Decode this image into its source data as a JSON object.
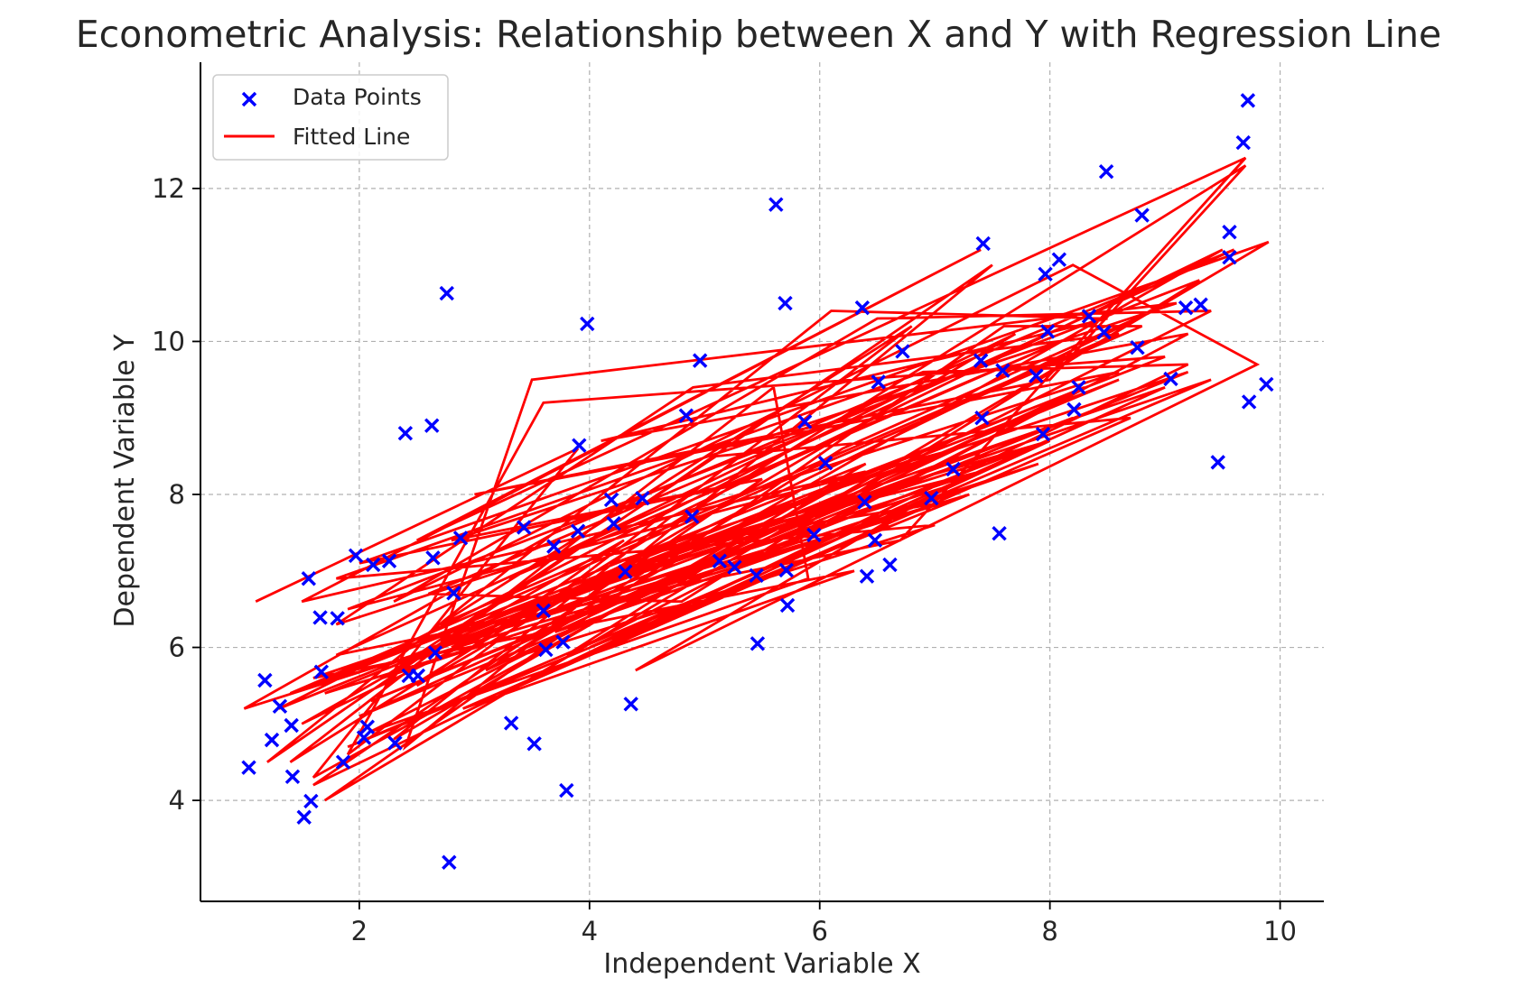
{
  "chart_data": {
    "type": "scatter",
    "title": "Econometric Analysis: Relationship between X and Y with Regression Line",
    "xlabel": "Independent Variable X",
    "ylabel": "Dependent Variable Y",
    "xlim": [
      0.62,
      10.38
    ],
    "ylim": [
      2.68,
      13.65
    ],
    "xticks": [
      "2",
      "4",
      "6",
      "8",
      "10"
    ],
    "yticks": [
      "4",
      "6",
      "8",
      "10",
      "12"
    ],
    "grid": true,
    "legend_position": "top-left",
    "series": [
      {
        "name": "Data Points",
        "kind": "scatter",
        "marker": "x",
        "color": "#0000ff",
        "points": [
          [
            1.04,
            4.43
          ],
          [
            1.18,
            5.57
          ],
          [
            1.24,
            4.79
          ],
          [
            1.31,
            5.23
          ],
          [
            1.41,
            4.98
          ],
          [
            1.42,
            4.31
          ],
          [
            1.52,
            3.78
          ],
          [
            1.56,
            6.9
          ],
          [
            1.58,
            3.99
          ],
          [
            1.66,
            6.39
          ],
          [
            1.67,
            5.68
          ],
          [
            1.81,
            6.38
          ],
          [
            1.86,
            4.5
          ],
          [
            1.97,
            7.2
          ],
          [
            2.04,
            4.82
          ],
          [
            2.07,
            4.96
          ],
          [
            2.12,
            7.08
          ],
          [
            2.26,
            7.13
          ],
          [
            2.31,
            4.75
          ],
          [
            2.4,
            8.8
          ],
          [
            2.43,
            5.63
          ],
          [
            2.51,
            5.63
          ],
          [
            2.63,
            8.9
          ],
          [
            2.64,
            7.17
          ],
          [
            2.66,
            5.93
          ],
          [
            2.76,
            10.63
          ],
          [
            2.78,
            3.19
          ],
          [
            2.82,
            6.71
          ],
          [
            2.88,
            7.43
          ],
          [
            3.32,
            5.01
          ],
          [
            3.43,
            7.57
          ],
          [
            3.52,
            4.74
          ],
          [
            3.6,
            6.48
          ],
          [
            3.62,
            5.97
          ],
          [
            3.69,
            7.32
          ],
          [
            3.77,
            6.07
          ],
          [
            3.8,
            4.13
          ],
          [
            3.9,
            7.52
          ],
          [
            3.91,
            8.64
          ],
          [
            3.98,
            10.23
          ],
          [
            4.19,
            7.93
          ],
          [
            4.21,
            7.62
          ],
          [
            4.31,
            6.99
          ],
          [
            4.36,
            5.26
          ],
          [
            4.46,
            7.95
          ],
          [
            4.84,
            9.03
          ],
          [
            4.89,
            7.71
          ],
          [
            4.96,
            9.75
          ],
          [
            5.13,
            7.13
          ],
          [
            5.26,
            7.05
          ],
          [
            5.45,
            6.94
          ],
          [
            5.46,
            6.05
          ],
          [
            5.62,
            11.79
          ],
          [
            5.7,
            10.5
          ],
          [
            5.71,
            7.01
          ],
          [
            5.72,
            6.55
          ],
          [
            5.87,
            8.95
          ],
          [
            5.95,
            7.47
          ],
          [
            6.05,
            8.41
          ],
          [
            6.37,
            10.44
          ],
          [
            6.39,
            7.9
          ],
          [
            6.41,
            6.93
          ],
          [
            6.48,
            7.4
          ],
          [
            6.51,
            9.47
          ],
          [
            6.61,
            7.08
          ],
          [
            6.72,
            9.87
          ],
          [
            6.97,
            7.95
          ],
          [
            7.16,
            8.33
          ],
          [
            7.4,
            9.75
          ],
          [
            7.41,
            9.0
          ],
          [
            7.42,
            11.28
          ],
          [
            7.56,
            7.49
          ],
          [
            7.59,
            9.62
          ],
          [
            7.88,
            9.55
          ],
          [
            7.94,
            8.79
          ],
          [
            7.96,
            10.88
          ],
          [
            7.98,
            10.13
          ],
          [
            8.08,
            11.07
          ],
          [
            8.21,
            9.11
          ],
          [
            8.25,
            9.4
          ],
          [
            8.34,
            10.33
          ],
          [
            8.47,
            10.12
          ],
          [
            8.49,
            12.22
          ],
          [
            8.76,
            9.92
          ],
          [
            8.8,
            11.65
          ],
          [
            9.05,
            9.51
          ],
          [
            9.18,
            10.44
          ],
          [
            9.31,
            10.48
          ],
          [
            9.46,
            8.42
          ],
          [
            9.56,
            11.43
          ],
          [
            9.56,
            11.1
          ],
          [
            9.68,
            12.6
          ],
          [
            9.72,
            13.15
          ],
          [
            9.73,
            9.21
          ],
          [
            9.88,
            9.44
          ]
        ]
      },
      {
        "name": "Fitted Line",
        "kind": "line",
        "color": "#ff0000",
        "points": [
          [
            1.1,
            6.6
          ],
          [
            3.9,
            8.6
          ],
          [
            1.6,
            4.3
          ],
          [
            6.4,
            8.3
          ],
          [
            1.5,
            6.6
          ],
          [
            7.4,
            11.2
          ],
          [
            2.5,
            7.4
          ],
          [
            8.4,
            11.5
          ],
          [
            9.7,
            12.4
          ],
          [
            6.7,
            7.4
          ],
          [
            1.8,
            5.9
          ],
          [
            9.6,
            11.2
          ],
          [
            3.7,
            7.5
          ],
          [
            1.0,
            5.2
          ],
          [
            7.1,
            8.1
          ],
          [
            4.4,
            5.7
          ],
          [
            9.8,
            9.7
          ],
          [
            8.2,
            11.0
          ],
          [
            2.3,
            6.6
          ],
          [
            6.5,
            10.3
          ],
          [
            9.4,
            10.4
          ],
          [
            2.1,
            4.9
          ],
          [
            5.9,
            6.9
          ],
          [
            5.6,
            9.4
          ],
          [
            1.4,
            4.5
          ],
          [
            9.7,
            12.3
          ],
          [
            8.0,
            9.5
          ],
          [
            3.0,
            8.0
          ],
          [
            8.6,
            9.6
          ],
          [
            1.8,
            6.3
          ],
          [
            4.9,
            9.4
          ],
          [
            8.6,
            10.1
          ],
          [
            2.7,
            6.3
          ],
          [
            6.8,
            10.2
          ],
          [
            1.9,
            4.6
          ],
          [
            3.6,
            9.2
          ],
          [
            9.0,
            9.8
          ],
          [
            1.6,
            5.5
          ],
          [
            5.8,
            7.4
          ],
          [
            9.2,
            10.1
          ],
          [
            4.1,
            8.7
          ],
          [
            8.5,
            10.3
          ],
          [
            6.1,
            10.4
          ],
          [
            1.2,
            4.5
          ],
          [
            7.5,
            11.0
          ],
          [
            2.4,
            4.7
          ],
          [
            3.5,
            9.5
          ],
          [
            9.1,
            10.5
          ],
          [
            2.8,
            7.4
          ],
          [
            5.5,
            8.2
          ],
          [
            1.6,
            4.2
          ],
          [
            9.2,
            9.7
          ],
          [
            6.9,
            9.6
          ],
          [
            1.8,
            6.9
          ],
          [
            7.0,
            7.6
          ],
          [
            3.2,
            5.8
          ],
          [
            9.5,
            11.2
          ],
          [
            4.7,
            7.7
          ],
          [
            2.3,
            4.8
          ],
          [
            6.4,
            8.4
          ],
          [
            1.4,
            5.4
          ],
          [
            8.8,
            10.2
          ],
          [
            7.6,
            10.2
          ],
          [
            1.7,
            4.0
          ],
          [
            9.9,
            11.3
          ],
          [
            2.0,
            7.1
          ],
          [
            5.2,
            8.1
          ],
          [
            8.1,
            10.0
          ],
          [
            3.3,
            6.9
          ],
          [
            7.7,
            10.1
          ],
          [
            2.5,
            5.5
          ],
          [
            4.3,
            7.4
          ],
          [
            1.5,
            5.0
          ],
          [
            8.9,
            10.4
          ],
          [
            6.2,
            8.6
          ],
          [
            3.1,
            5.7
          ],
          [
            7.2,
            8.6
          ],
          [
            1.9,
            6.5
          ],
          [
            9.3,
            10.8
          ],
          [
            4.8,
            6.6
          ],
          [
            2.6,
            6.7
          ],
          [
            6.7,
            9.3
          ],
          [
            1.3,
            5.2
          ],
          [
            8.3,
            9.4
          ],
          [
            3.7,
            6.2
          ],
          [
            7.9,
            8.4
          ],
          [
            2.2,
            5.6
          ],
          [
            5.1,
            8.5
          ],
          [
            8.7,
            9.0
          ],
          [
            2.9,
            5.2
          ],
          [
            6.3,
            7.0
          ],
          [
            1.6,
            5.6
          ],
          [
            9.0,
            9.4
          ],
          [
            4.0,
            6.0
          ],
          [
            7.3,
            8.0
          ],
          [
            2.4,
            5.8
          ],
          [
            5.0,
            7.4
          ],
          [
            8.0,
            8.7
          ],
          [
            3.4,
            5.5
          ],
          [
            6.6,
            7.6
          ],
          [
            1.9,
            4.7
          ],
          [
            9.4,
            9.5
          ],
          [
            4.5,
            7.0
          ],
          [
            2.7,
            6.1
          ],
          [
            6.0,
            8.0
          ],
          [
            3.8,
            5.9
          ],
          [
            8.2,
            9.3
          ],
          [
            2.0,
            5.1
          ],
          [
            5.4,
            7.2
          ],
          [
            7.8,
            8.6
          ],
          [
            3.2,
            6.4
          ],
          [
            6.8,
            8.2
          ],
          [
            2.1,
            5.3
          ],
          [
            9.2,
            9.6
          ],
          [
            4.2,
            7.1
          ],
          [
            7.4,
            8.3
          ],
          [
            2.5,
            5.9
          ],
          [
            5.7,
            7.7
          ],
          [
            8.6,
            9.5
          ],
          [
            3.6,
            6.6
          ],
          [
            6.2,
            8.1
          ],
          [
            1.7,
            5.4
          ],
          [
            7.1,
            7.9
          ],
          [
            4.6,
            7.3
          ],
          [
            2.8,
            6.0
          ],
          [
            8.2,
            9.0
          ]
        ]
      }
    ]
  }
}
